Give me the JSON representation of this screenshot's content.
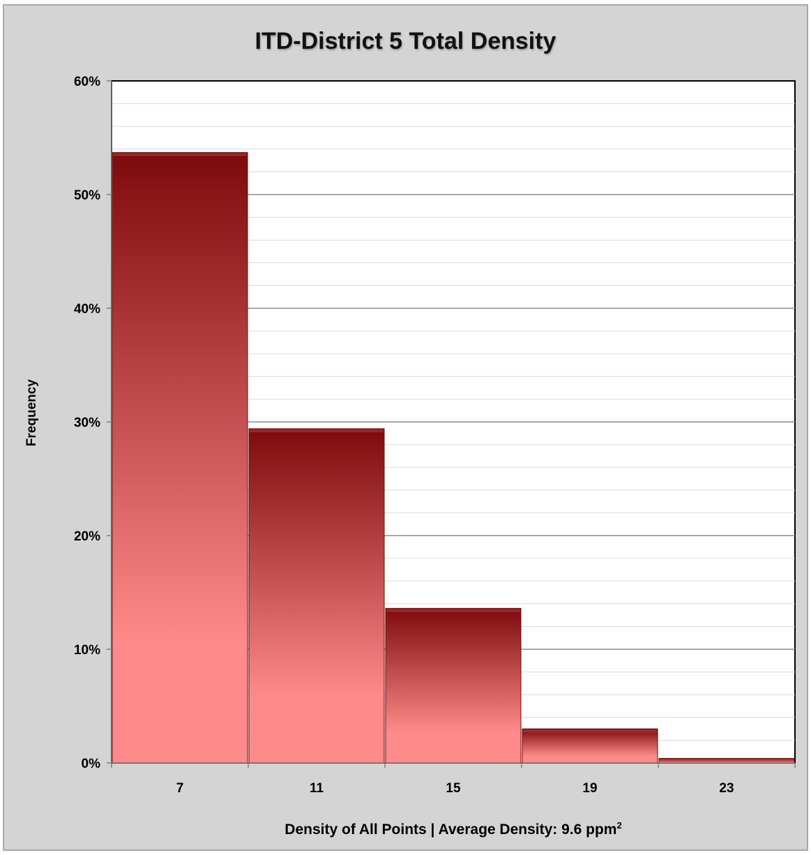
{
  "chart_data": {
    "type": "bar",
    "title": "ITD-District 5 Total Density",
    "xlabel": "Density of All Points | Average Density: 9.6 ppm",
    "xlabel_superscript": "2",
    "ylabel": "Frequency",
    "categories": [
      "7",
      "11",
      "15",
      "19",
      "23"
    ],
    "values": [
      53.7,
      29.4,
      13.6,
      3.0,
      0.4
    ],
    "value_format": "percent",
    "ylim": [
      0,
      60
    ],
    "yticks": [
      "0%",
      "10%",
      "20%",
      "30%",
      "40%",
      "50%",
      "60%"
    ],
    "grid": true,
    "legend": "none",
    "bar_colors": {
      "top": "#7d0a0c",
      "bottom": "#ff8a8a"
    },
    "background": "#d4d4d4"
  }
}
